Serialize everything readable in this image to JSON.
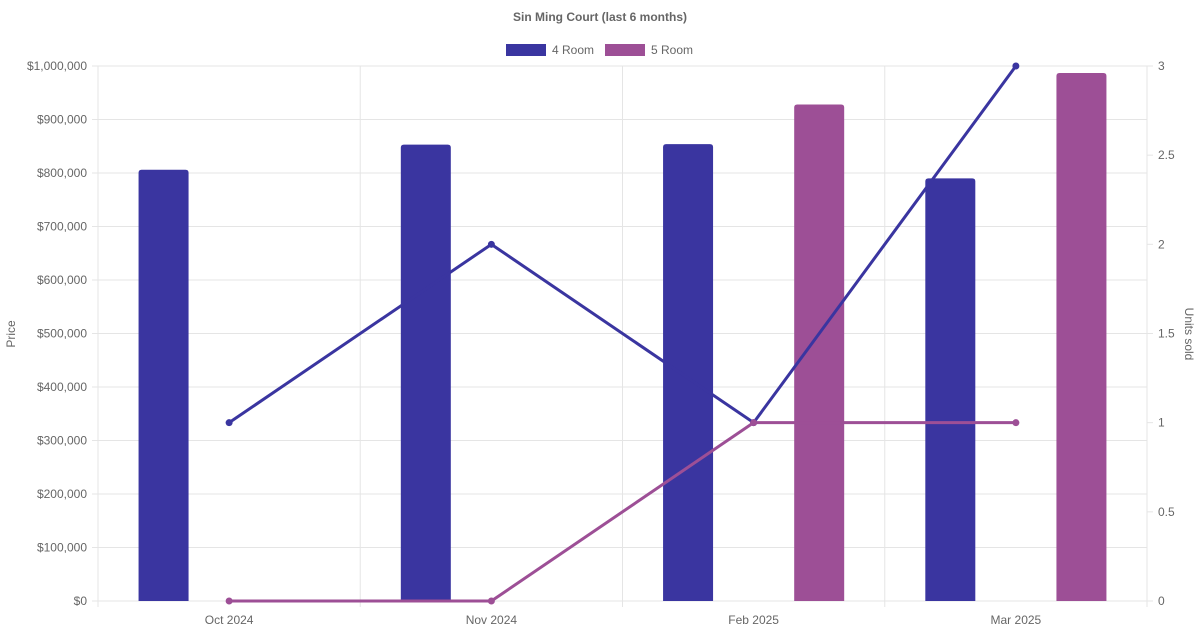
{
  "chart_data": {
    "type": "bar",
    "title": "Sin Ming Court (last 6 months)",
    "categories": [
      "Oct 2024",
      "Nov 2024",
      "Feb 2025",
      "Mar 2025"
    ],
    "y_left": {
      "label": "Price",
      "range": [
        0,
        1000000
      ],
      "ticks": [
        "$0",
        "$100,000",
        "$200,000",
        "$300,000",
        "$400,000",
        "$500,000",
        "$600,000",
        "$700,000",
        "$800,000",
        "$900,000",
        "$1,000,000"
      ]
    },
    "y_right": {
      "label": "Units sold",
      "range": [
        0,
        3
      ],
      "ticks": [
        "0",
        "0.5",
        "1",
        "1.5",
        "2",
        "2.5",
        "3"
      ]
    },
    "grid": true,
    "legend_position": "top-center",
    "bar_series": [
      {
        "name": "4 Room",
        "color": "#3a35a0",
        "values": [
          806000,
          853000,
          854000,
          790000
        ]
      },
      {
        "name": "5 Room",
        "color": "#9d4f96",
        "values": [
          null,
          null,
          928000,
          987000
        ]
      }
    ],
    "line_series": [
      {
        "name": "4 Room",
        "color": "#3a35a0",
        "values": [
          1,
          2,
          1,
          3
        ]
      },
      {
        "name": "5 Room",
        "color": "#9d4f96",
        "values": [
          0,
          0,
          1,
          1
        ]
      }
    ]
  }
}
